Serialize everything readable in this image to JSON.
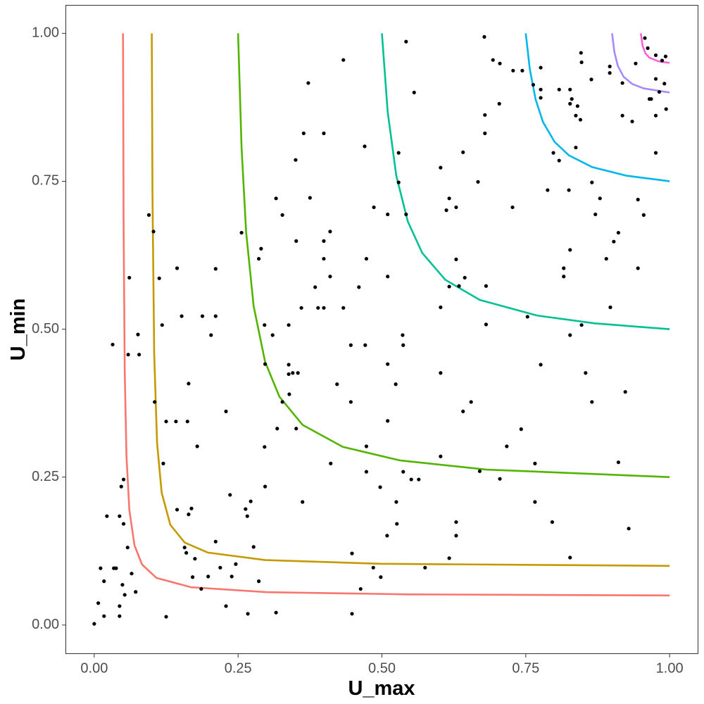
{
  "chart_data": {
    "type": "scatter",
    "x_label": "U_max",
    "y_label": "U_min",
    "xlim": [
      -0.05,
      1.05
    ],
    "ylim": [
      -0.049,
      1.048
    ],
    "xticks": [
      {
        "value": 0,
        "label": "0.00"
      },
      {
        "value": 0.25,
        "label": "0.25"
      },
      {
        "value": 0.5,
        "label": "0.50"
      },
      {
        "value": 0.75,
        "label": "0.75"
      },
      {
        "value": 1,
        "label": "1.00"
      }
    ],
    "yticks": [
      {
        "value": 0,
        "label": "0.00"
      },
      {
        "value": 0.25,
        "label": "0.25"
      },
      {
        "value": 0.5,
        "label": "0.50"
      },
      {
        "value": 0.75,
        "label": "0.75"
      },
      {
        "value": 1,
        "label": "1.00"
      }
    ],
    "grid": false,
    "series": [
      {
        "type": "line",
        "color": "#F8766D",
        "x": [
          0.05,
          0.051,
          0.053,
          0.056,
          0.061,
          0.07,
          0.083,
          0.108,
          0.168,
          0.298,
          0.548,
          1
        ],
        "values": [
          1.0,
          0.6827,
          0.4288,
          0.286,
          0.1945,
          0.1345,
          0.1024,
          0.0797,
          0.0639,
          0.0556,
          0.0518,
          0.05
        ]
      },
      {
        "type": "line",
        "color": "#C49A00",
        "x": [
          0.1,
          0.1012,
          0.1042,
          0.1092,
          0.1172,
          0.1322,
          0.1572,
          0.1972,
          0.2972,
          0.4972,
          1
        ],
        "values": [
          1.0,
          0.7292,
          0.4583,
          0.3079,
          0.2236,
          0.1694,
          0.1393,
          0.1225,
          0.1098,
          0.1035,
          0.1
        ]
      },
      {
        "type": "line",
        "color": "#53B400",
        "x": [
          0.25,
          0.256,
          0.264,
          0.277,
          0.297,
          0.322,
          0.362,
          0.432,
          0.532,
          0.682,
          1
        ],
        "values": [
          1.0,
          0.808,
          0.664,
          0.5392,
          0.4447,
          0.3856,
          0.3383,
          0.3011,
          0.2781,
          0.2627,
          0.25
        ]
      },
      {
        "type": "line",
        "color": "#00C094",
        "x": [
          0.5,
          0.51,
          0.525,
          0.545,
          0.57,
          0.61,
          0.67,
          0.77,
          0.87,
          1
        ],
        "values": [
          1.0,
          0.8675,
          0.7591,
          0.682,
          0.629,
          0.5836,
          0.5495,
          0.523,
          0.5098,
          0.5
        ]
      },
      {
        "type": "line",
        "color": "#00B6EB",
        "x": [
          0.75,
          0.757,
          0.767,
          0.78,
          0.8,
          0.825,
          0.865,
          0.925,
          1
        ],
        "values": [
          1.0,
          0.9398,
          0.8887,
          0.85,
          0.8167,
          0.7938,
          0.7741,
          0.7594,
          0.75
        ]
      },
      {
        "type": "line",
        "color": "#A58AFF",
        "x": [
          0.9,
          0.904,
          0.91,
          0.92,
          0.935,
          0.955,
          1
        ],
        "values": [
          1.0,
          0.9686,
          0.945,
          0.9267,
          0.9144,
          0.9069,
          0.9
        ]
      },
      {
        "type": "line",
        "color": "#FB61D7",
        "x": [
          0.95,
          0.953,
          0.958,
          0.965,
          0.98,
          1
        ],
        "values": [
          1.0,
          0.9794,
          0.9662,
          0.9588,
          0.9529,
          0.95
        ]
      },
      {
        "type": "scatter",
        "color": "#000000",
        "x": [
          0.0,
          0.007,
          0.011,
          0.017,
          0.017,
          0.022,
          0.032,
          0.034,
          0.038,
          0.044,
          0.044,
          0.044,
          0.047,
          0.049,
          0.051,
          0.051,
          0.053,
          0.058,
          0.059,
          0.061,
          0.065,
          0.072,
          0.076,
          0.078,
          0.095,
          0.103,
          0.105,
          0.113,
          0.118,
          0.12,
          0.125,
          0.125,
          0.142,
          0.144,
          0.144,
          0.152,
          0.157,
          0.16,
          0.162,
          0.164,
          0.164,
          0.169,
          0.171,
          0.175,
          0.179,
          0.186,
          0.188,
          0.198,
          0.203,
          0.211,
          0.211,
          0.211,
          0.219,
          0.229,
          0.229,
          0.236,
          0.239,
          0.246,
          0.256,
          0.263,
          0.266,
          0.267,
          0.272,
          0.277,
          0.286,
          0.29,
          0.286,
          0.296,
          0.296,
          0.297,
          0.297,
          0.31,
          0.316,
          0.316,
          0.318,
          0.327,
          0.327,
          0.338,
          0.338,
          0.338,
          0.339,
          0.345,
          0.35,
          0.351,
          0.351,
          0.354,
          0.36,
          0.362,
          0.364,
          0.375,
          0.372,
          0.384,
          0.389,
          0.399,
          0.399,
          0.399,
          0.399,
          0.41,
          0.41,
          0.411,
          0.422,
          0.433,
          0.433,
          0.446,
          0.446,
          0.448,
          0.448,
          0.46,
          0.463,
          0.47,
          0.471,
          0.473,
          0.473,
          0.473,
          0.485,
          0.486,
          0.497,
          0.498,
          0.509,
          0.51,
          0.51,
          0.51,
          0.51,
          0.524,
          0.525,
          0.526,
          0.536,
          0.537,
          0.537,
          0.551,
          0.529,
          0.529,
          0.542,
          0.542,
          0.564,
          0.556,
          0.575,
          0.602,
          0.602,
          0.602,
          0.602,
          0.612,
          0.617,
          0.617,
          0.617,
          0.629,
          0.629,
          0.629,
          0.629,
          0.634,
          0.641,
          0.641,
          0.644,
          0.655,
          0.667,
          0.67,
          0.678,
          0.679,
          0.679,
          0.681,
          0.681,
          0.693,
          0.705,
          0.704,
          0.705,
          0.717,
          0.727,
          0.728,
          0.742,
          0.744,
          0.753,
          0.763,
          0.766,
          0.766,
          0.776,
          0.776,
          0.776,
          0.776,
          0.788,
          0.796,
          0.798,
          0.808,
          0.808,
          0.816,
          0.816,
          0.825,
          0.827,
          0.827,
          0.827,
          0.827,
          0.827,
          0.83,
          0.837,
          0.84,
          0.837,
          0.845,
          0.846,
          0.847,
          0.847,
          0.854,
          0.865,
          0.864,
          0.865,
          0.871,
          0.879,
          0.89,
          0.896,
          0.896,
          0.897,
          0.903,
          0.911,
          0.911,
          0.918,
          0.918,
          0.923,
          0.929,
          0.935,
          0.941,
          0.945,
          0.945,
          0.955,
          0.957,
          0.962,
          0.965,
          0.976,
          0.976,
          0.976,
          0.976,
          0.982,
          0.987,
          0.993,
          0.994,
          0.991,
          0.968
        ],
        "values": [
          0.002,
          0.037,
          0.096,
          0.015,
          0.074,
          0.184,
          0.474,
          0.096,
          0.096,
          0.032,
          0.184,
          0.015,
          0.234,
          0.068,
          0.246,
          0.171,
          0.051,
          0.131,
          0.457,
          0.587,
          0.087,
          0.056,
          0.491,
          0.457,
          0.693,
          0.665,
          0.377,
          0.586,
          0.507,
          0.273,
          0.014,
          0.344,
          0.344,
          0.195,
          0.603,
          0.522,
          0.131,
          0.122,
          0.344,
          0.408,
          0.187,
          0.197,
          0.081,
          0.112,
          0.302,
          0.061,
          0.522,
          0.082,
          0.49,
          0.522,
          0.602,
          0.141,
          0.097,
          0.361,
          0.032,
          0.22,
          0.082,
          0.103,
          0.663,
          0.196,
          0.184,
          0.019,
          0.209,
          0.132,
          0.619,
          0.636,
          0.074,
          0.507,
          0.301,
          0.441,
          0.234,
          0.49,
          0.721,
          0.021,
          0.332,
          0.693,
          0.377,
          0.507,
          0.44,
          0.424,
          0.39,
          0.426,
          0.786,
          0.649,
          0.332,
          0.426,
          0.536,
          0.208,
          0.831,
          0.722,
          0.916,
          0.571,
          0.536,
          0.831,
          0.536,
          0.649,
          0.619,
          0.665,
          0.589,
          0.273,
          0.407,
          0.536,
          0.955,
          0.473,
          0.377,
          0.121,
          0.019,
          0.571,
          0.061,
          0.809,
          0.473,
          0.619,
          0.302,
          0.259,
          0.097,
          0.706,
          0.233,
          0.081,
          0.151,
          0.694,
          0.589,
          0.345,
          0.441,
          0.407,
          0.208,
          0.171,
          0.49,
          0.259,
          0.473,
          0.246,
          0.798,
          0.748,
          0.694,
          0.986,
          0.246,
          0.9,
          0.097,
          0.773,
          0.537,
          0.426,
          0.285,
          0.701,
          0.572,
          0.721,
          0.113,
          0.706,
          0.174,
          0.151,
          0.618,
          0.573,
          0.799,
          0.361,
          0.587,
          0.377,
          0.749,
          0.26,
          0.994,
          0.862,
          0.831,
          0.573,
          0.508,
          0.955,
          0.949,
          0.881,
          0.247,
          0.302,
          0.706,
          0.937,
          0.331,
          0.937,
          0.521,
          0.913,
          0.273,
          0.208,
          0.942,
          0.905,
          0.891,
          0.44,
          0.735,
          0.174,
          0.798,
          0.785,
          0.905,
          0.603,
          0.589,
          0.735,
          0.905,
          0.881,
          0.634,
          0.49,
          0.114,
          0.889,
          0.807,
          0.877,
          0.861,
          0.854,
          0.967,
          0.951,
          0.507,
          0.426,
          0.748,
          0.922,
          0.377,
          0.694,
          0.721,
          0.619,
          0.944,
          0.933,
          0.537,
          0.648,
          0.663,
          0.275,
          0.861,
          0.916,
          0.394,
          0.163,
          0.851,
          0.949,
          0.719,
          0.603,
          0.693,
          0.992,
          0.975,
          0.889,
          0.963,
          0.923,
          0.861,
          0.798,
          0.901,
          0.954,
          0.961,
          0.872,
          0.915,
          0.889
        ]
      }
    ]
  }
}
